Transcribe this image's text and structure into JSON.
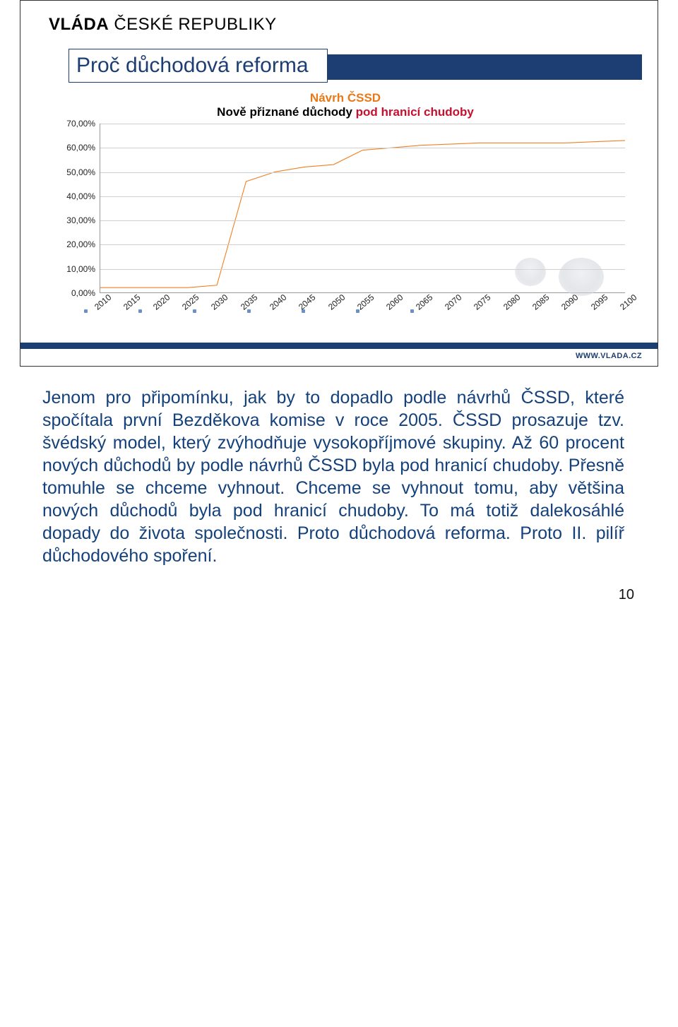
{
  "header": {
    "bold": "VLÁDA",
    "rest": " ČESKÉ REPUBLIKY"
  },
  "slide_title": "Proč důchodová reforma",
  "chart": {
    "type": "line",
    "title_top": "Návrh ČSSD",
    "title_bottom_black": "Nově přiznané důchody ",
    "title_bottom_red": "pod hranicí chudoby",
    "y_ticks": [
      "0,00%",
      "10,00%",
      "20,00%",
      "30,00%",
      "40,00%",
      "50,00%",
      "60,00%",
      "70,00%"
    ],
    "ylim": [
      0,
      70
    ],
    "x_ticks": [
      "2010",
      "2015",
      "2020",
      "2025",
      "2030",
      "2035",
      "2040",
      "2045",
      "2050",
      "2055",
      "2060",
      "2065",
      "2070",
      "2075",
      "2080",
      "2085",
      "2090",
      "2095",
      "2100"
    ],
    "series": {
      "color": "#ee8122",
      "width": 3,
      "points": [
        [
          2010,
          2
        ],
        [
          2015,
          2
        ],
        [
          2020,
          2
        ],
        [
          2025,
          2
        ],
        [
          2030,
          3
        ],
        [
          2035,
          46
        ],
        [
          2040,
          50
        ],
        [
          2045,
          52
        ],
        [
          2050,
          53
        ],
        [
          2055,
          59
        ],
        [
          2060,
          60
        ],
        [
          2065,
          61
        ],
        [
          2070,
          61.5
        ],
        [
          2075,
          62
        ],
        [
          2080,
          62
        ],
        [
          2085,
          62
        ],
        [
          2090,
          62
        ],
        [
          2095,
          62.5
        ],
        [
          2100,
          63
        ]
      ]
    },
    "grid_color": "#cfcfcf",
    "background_color": "#ffffff",
    "label_fontsize": 12,
    "title_fontsize": 17
  },
  "url": "WWW.VLADA.CZ",
  "body_text": "Jenom pro připomínku, jak by to dopadlo podle návrhů ČSSD, které spočítala první Bezděkova komise v roce 2005. ČSSD prosazuje tzv. švédský model, který zvýhodňuje vysokopříjmové skupiny. Až 60 procent nových důchodů by podle návrhů ČSSD byla pod hranicí chudoby. Přesně tomuhle se chceme vyhnout. Chceme se vyhnout tomu, aby většina nových důchodů byla pod hranicí chudoby. To má totiž dalekosáhlé dopady do života společnosti. Proto důchodová reforma. Proto II. pilíř důchodového spoření.",
  "page_number": "10",
  "colors": {
    "brand_blue": "#1d3e72",
    "text_blue": "#14417b",
    "accent_orange": "#e97816",
    "accent_red": "#c70f2e"
  }
}
